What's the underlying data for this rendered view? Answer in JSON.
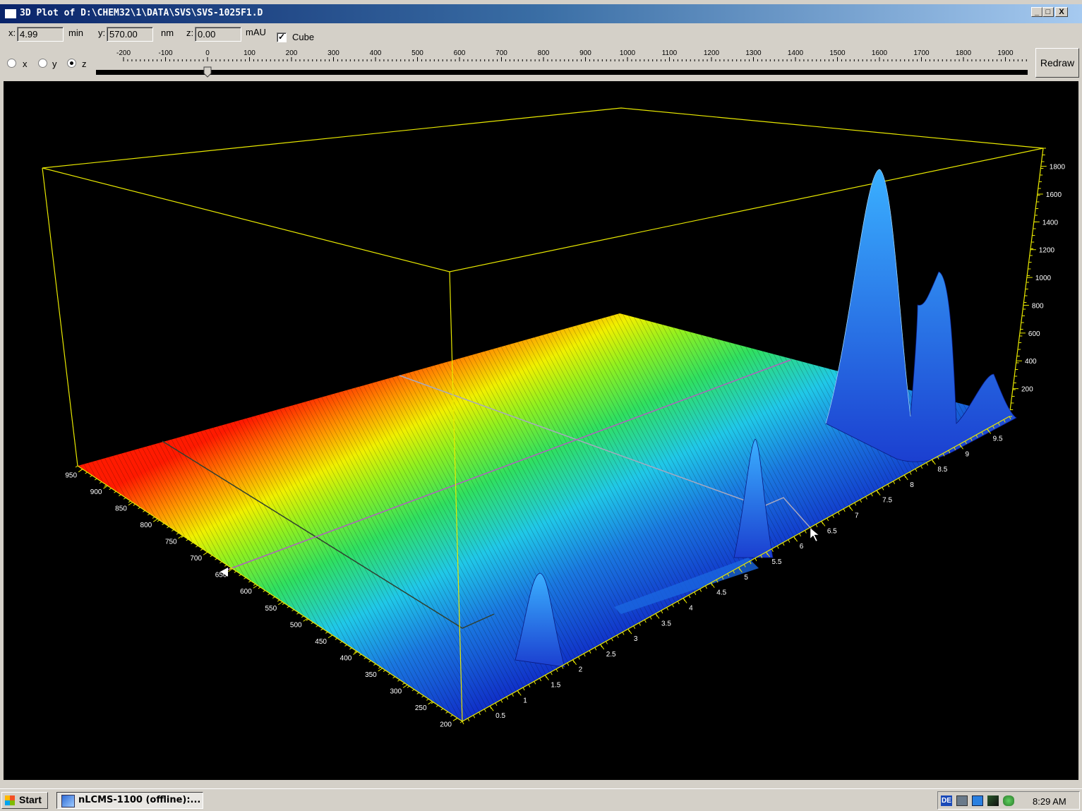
{
  "window": {
    "title": "3D Plot of D:\\CHEM32\\1\\DATA\\SVS\\SVS-1025F1.D",
    "buttons": {
      "minimize": "_",
      "maximize": "□",
      "close": "X"
    }
  },
  "toolbar": {
    "x": {
      "label": "x:",
      "value": "4.99",
      "unit": "min"
    },
    "y": {
      "label": "y:",
      "value": "570.00",
      "unit": "nm"
    },
    "z": {
      "label": "z:",
      "value": "0.00",
      "unit": "mAU"
    },
    "cube": {
      "label": "Cube",
      "checked": true
    },
    "axis_radios": [
      {
        "label": "x",
        "selected": false
      },
      {
        "label": "y",
        "selected": false
      },
      {
        "label": "z",
        "selected": true
      }
    ],
    "slider": {
      "ticks": [
        "-200",
        "-100",
        "0",
        "100",
        "200",
        "300",
        "400",
        "500",
        "600",
        "700",
        "800",
        "900",
        "1000",
        "1100",
        "1200",
        "1300",
        "1400",
        "1500",
        "1600",
        "1700",
        "1800",
        "1900"
      ],
      "value": 0
    },
    "redraw_label": "Redraw"
  },
  "plot": {
    "wavelength_labels": [
      "950",
      "900",
      "850",
      "800",
      "750",
      "700",
      "650",
      "600",
      "550",
      "500",
      "450",
      "400",
      "350",
      "300",
      "250",
      "200"
    ],
    "time_labels": [
      "0.5",
      "1",
      "1.5",
      "2",
      "2.5",
      "3",
      "3.5",
      "4",
      "4.5",
      "5",
      "5.5",
      "6",
      "6.5",
      "7",
      "7.5",
      "8",
      "8.5",
      "9",
      "9.5"
    ],
    "absorbance_labels": [
      "200",
      "400",
      "600",
      "800",
      "1000",
      "1200",
      "1400",
      "1600",
      "1800"
    ]
  },
  "taskbar": {
    "start_label": "Start",
    "task_label": "nLCMS-1100 (offline):...",
    "tray_lang": "DE",
    "clock": "8:29 AM"
  },
  "colors": {
    "titlebar_start": "#0a246a",
    "cube_line": "#ffff00",
    "plot_background": "#000000"
  }
}
